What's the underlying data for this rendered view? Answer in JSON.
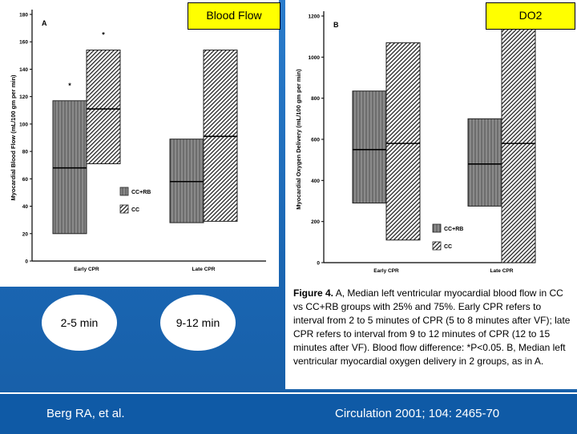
{
  "header_a": "Blood Flow",
  "header_b": "DO2",
  "oval_1": "2-5 min",
  "oval_2": "9-12 min",
  "citation_left": "Berg RA, et al.",
  "citation_right": "Circulation 2001; 104: 2465-70",
  "caption": {
    "lead": "Figure 4.",
    "body": " A, Median left ventricular myocardial blood flow in CC vs CC+RB groups with 25% and 75%. Early CPR refers to interval from 2 to 5 minutes of CPR (5 to 8 minutes after VF); late CPR refers to interval from 9 to 12 minutes of CPR (12 to 15 minutes after VF). Blood flow difference: *P<0.05. B, Median left ventricular myocardial oxygen delivery in 2 groups, as in A."
  },
  "colors": {
    "background": "#1a66b3",
    "header_box": "#ffff00",
    "cc_rb_fill": "#777777",
    "cc_fill": "#ffffff"
  },
  "chart_data": [
    {
      "type": "bar",
      "panel_label": "A",
      "ylabel": "Myocardial Blood Flow (mL/100 gm per min)",
      "ylim": [
        0,
        180
      ],
      "yticks": [
        0,
        20,
        40,
        60,
        80,
        100,
        120,
        140,
        160,
        180
      ],
      "categories": [
        "Early CPR",
        "Late CPR"
      ],
      "legend": [
        "CC+RB",
        "CC"
      ],
      "series": [
        {
          "name": "CC+RB",
          "q1": [
            20,
            28
          ],
          "median": [
            68,
            58
          ],
          "q3": [
            117,
            89
          ]
        },
        {
          "name": "CC",
          "q1": [
            71,
            29
          ],
          "median": [
            111,
            91
          ],
          "q3": [
            154,
            154
          ]
        }
      ],
      "markers": [
        {
          "text": "*",
          "category": "Early CPR",
          "series": "CC+RB",
          "value": 128
        },
        {
          "text": "*",
          "category": "Early CPR",
          "series": "CC",
          "value": 165
        }
      ]
    },
    {
      "type": "bar",
      "panel_label": "B",
      "ylabel": "Myocardial Oxygen Delivery (mL/100 gm per min)",
      "ylim": [
        0,
        1200
      ],
      "yticks": [
        0,
        200,
        400,
        600,
        800,
        1000,
        1200
      ],
      "categories": [
        "Early CPR",
        "Late CPR"
      ],
      "legend": [
        "CC+RB",
        "CC"
      ],
      "series": [
        {
          "name": "CC+RB",
          "q1": [
            290,
            275
          ],
          "median": [
            550,
            480
          ],
          "q3": [
            835,
            700
          ]
        },
        {
          "name": "CC",
          "q1": [
            110,
            0
          ],
          "median": [
            580,
            580
          ],
          "q3": [
            1070,
            1200
          ]
        }
      ],
      "markers": []
    }
  ]
}
